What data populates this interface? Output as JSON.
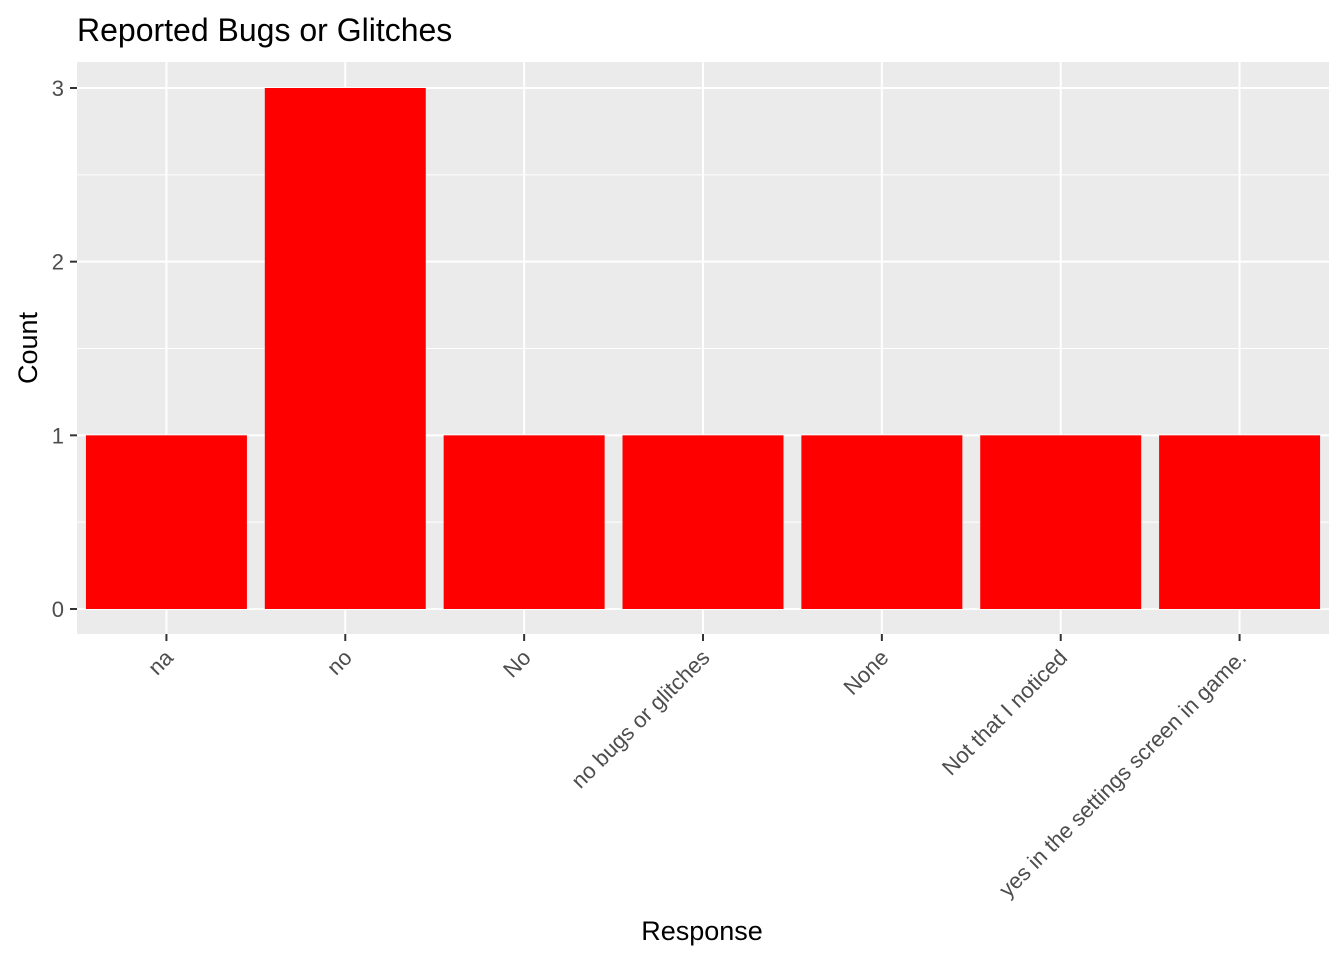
{
  "chart_data": {
    "type": "bar",
    "title": "Reported Bugs or Glitches",
    "xlabel": "Response",
    "ylabel": "Count",
    "categories": [
      "na",
      "no",
      "No",
      "no bugs or glitches",
      "None",
      "Not that I noticed",
      "yes in the settings screen in game."
    ],
    "values": [
      1,
      3,
      1,
      1,
      1,
      1,
      1
    ],
    "ylim": [
      0,
      3
    ],
    "yticks": [
      0,
      1,
      2,
      3
    ],
    "grid": true,
    "bar_color": "#ff0000",
    "panel_background": "#ebebeb",
    "grid_color": "#ffffff"
  }
}
